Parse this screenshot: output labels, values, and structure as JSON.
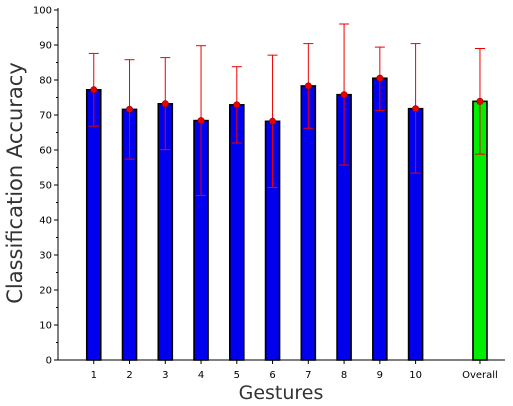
{
  "chart_data": {
    "type": "bar",
    "title": "",
    "xlabel": "Gestures",
    "ylabel": "Classification Accuracy",
    "ylim": [
      0,
      100
    ],
    "yticks": [
      0,
      10,
      20,
      30,
      40,
      50,
      60,
      70,
      80,
      90,
      100
    ],
    "grid": false,
    "categories": [
      "1",
      "2",
      "3",
      "4",
      "5",
      "6",
      "7",
      "8",
      "9",
      "10",
      "Overall"
    ],
    "positions": [
      1,
      2,
      3,
      4,
      5,
      6,
      7,
      8,
      9,
      10,
      11.8
    ],
    "xlim": [
      0,
      12.5
    ],
    "values": [
      77.2,
      71.6,
      73.2,
      68.4,
      72.9,
      68.2,
      78.3,
      75.8,
      80.5,
      71.8,
      73.9
    ],
    "error_low": [
      66.8,
      57.4,
      60.1,
      47.0,
      62.0,
      49.3,
      66.2,
      55.7,
      71.3,
      53.4,
      58.8
    ],
    "error_high": [
      87.6,
      85.8,
      86.4,
      89.8,
      83.8,
      87.1,
      90.4,
      96.0,
      89.4,
      90.4,
      89.0
    ],
    "bar_colors": [
      "#0000ee",
      "#0000ee",
      "#0000ee",
      "#0000ee",
      "#0000ee",
      "#0000ee",
      "#0000ee",
      "#0000ee",
      "#0000ee",
      "#0000ee",
      "#00ee00"
    ],
    "error_color": "#ee0000",
    "marker_color": "#ee0000"
  }
}
